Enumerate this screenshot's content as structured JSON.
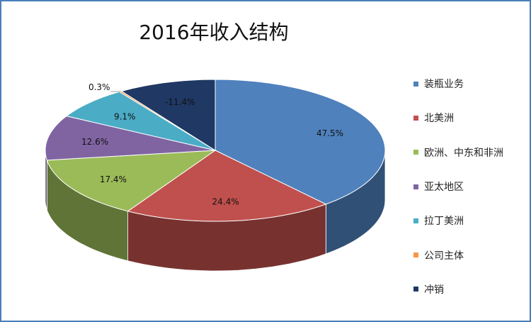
{
  "chart_data": {
    "type": "pie",
    "title": "2016年收入结构",
    "categories": [
      "装瓶业务",
      "北美洲",
      "欧洲、中东和非洲",
      "亚太地区",
      "拉丁美洲",
      "公司主体",
      "冲销"
    ],
    "values": [
      47.5,
      24.4,
      17.4,
      12.6,
      9.1,
      0.3,
      -11.4
    ],
    "data_labels": [
      "47.5%",
      "24.4%",
      "17.4%",
      "12.6%",
      "9.1%",
      "0.3%",
      "-11.4%"
    ],
    "colors": [
      "#4f81bd",
      "#c0504d",
      "#9bbb59",
      "#8064a2",
      "#4bacc6",
      "#f79646",
      "#1f3864"
    ],
    "legend_position": "right",
    "style": "3d-pie"
  }
}
